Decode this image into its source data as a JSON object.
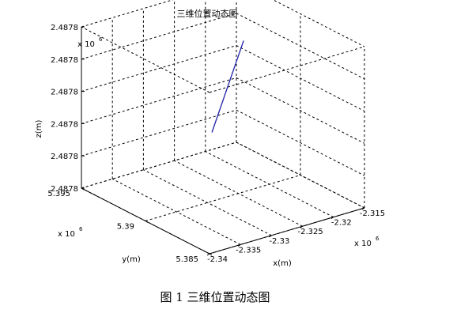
{
  "chart_data": {
    "type": "line3d",
    "title": "三维位置动态图",
    "xlabel": "x(m)",
    "ylabel": "y(m)",
    "zlabel": "z(m)",
    "x_exponent": "x 10",
    "x_exponent_power": "6",
    "y_exponent": "x 10",
    "y_exponent_power": "6",
    "z_exponent": "x 10",
    "z_exponent_power": "6",
    "xlim": [
      -2.34,
      -2.315
    ],
    "ylim": [
      5.385,
      5.395
    ],
    "x_ticks": [
      -2.34,
      -2.335,
      -2.33,
      -2.325,
      -2.32,
      -2.315
    ],
    "x_tick_labels": [
      "-2.34",
      "-2.335",
      "-2.33",
      "-2.325",
      "-2.32",
      "-2.315"
    ],
    "y_ticks": [
      5.385,
      5.39,
      5.395
    ],
    "y_tick_labels": [
      "5.385",
      "5.39",
      "5.395"
    ],
    "z_tick_labels": [
      "2.4878",
      "2.4878",
      "2.4878",
      "2.4878",
      "2.4878",
      "2.4878"
    ],
    "grid": true,
    "series": [
      {
        "color": "#1f1fa8",
        "points": [
          {
            "x": -2.3268,
            "y": 5.3912,
            "z": 0.35
          },
          {
            "x": -2.3252,
            "y": 5.3895,
            "z": 0.97
          }
        ]
      }
    ]
  },
  "caption": "图 1  三维位置动态图"
}
